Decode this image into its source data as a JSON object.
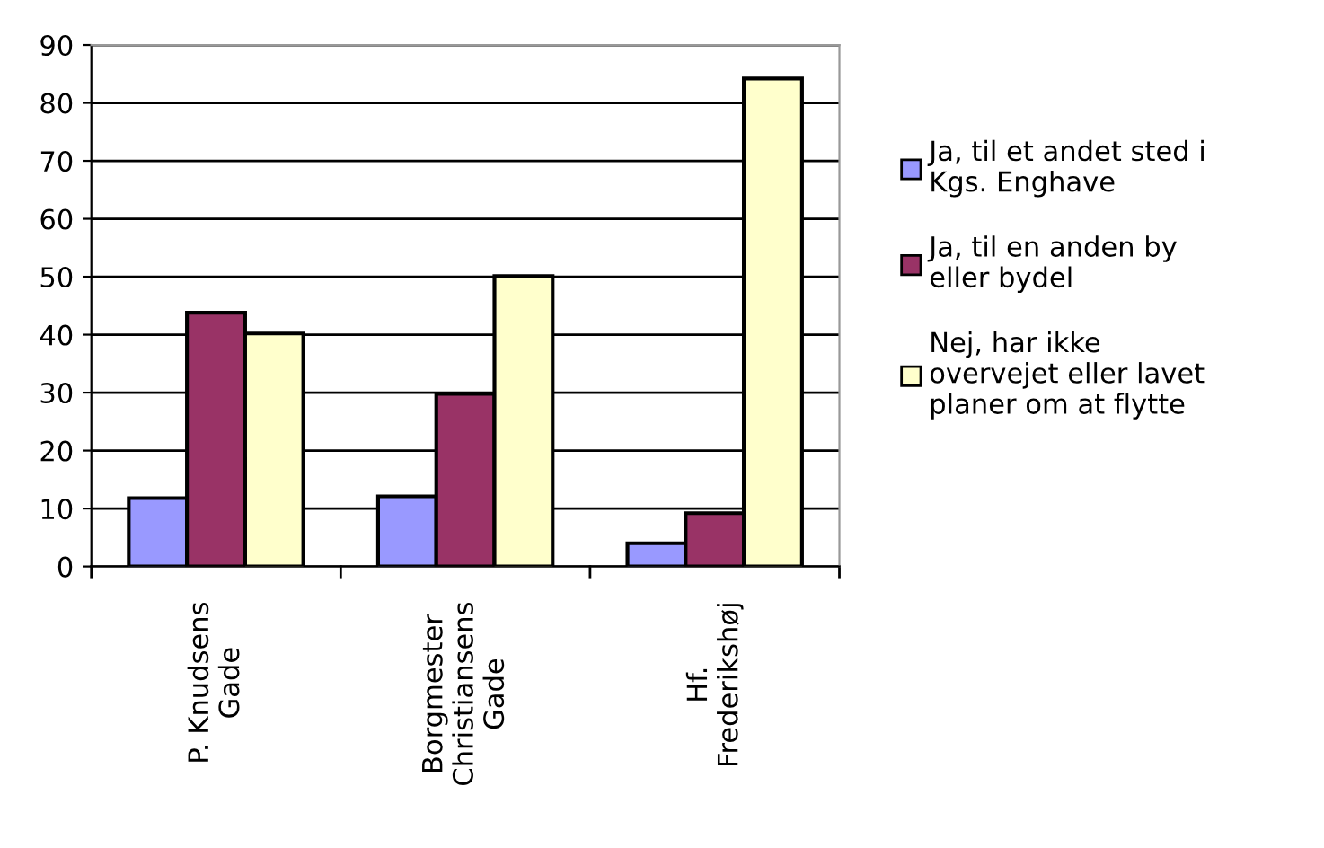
{
  "chart_data": {
    "type": "bar",
    "categories": [
      "P. Knudsens\nGade",
      "Borgmester\nChristiansens\nGade",
      "Hf.\nFrederikshøj"
    ],
    "series": [
      {
        "name": "Ja, til et andet sted i\nKgs. Enghave",
        "color": "#9999ff",
        "values": [
          11.8,
          12.1,
          4.0
        ]
      },
      {
        "name": "Ja, til en anden by\neller bydel",
        "color": "#993366",
        "values": [
          43.8,
          29.8,
          9.2
        ]
      },
      {
        "name": "Nej, har ikke\novervejet eller lavet\nplaner om at flytte",
        "color": "#ffffcc",
        "values": [
          40.2,
          50.1,
          84.2
        ]
      }
    ],
    "ylim": [
      0,
      90
    ],
    "yticks": [
      0,
      10,
      20,
      30,
      40,
      50,
      60,
      70,
      80,
      90
    ],
    "grid": "y",
    "legend": "right"
  }
}
